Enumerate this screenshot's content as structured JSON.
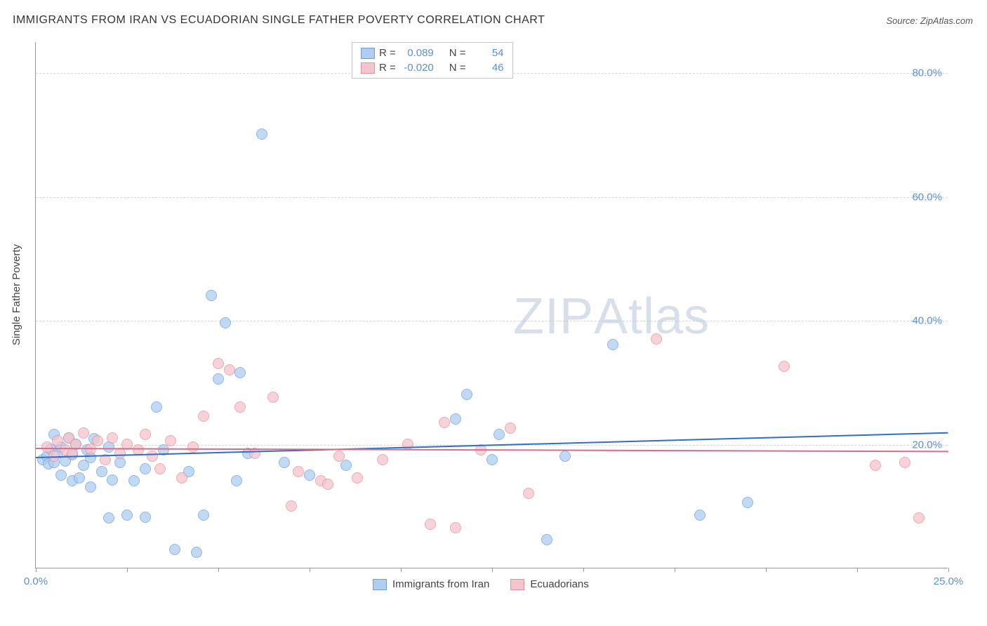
{
  "title": "IMMIGRANTS FROM IRAN VS ECUADORIAN SINGLE FATHER POVERTY CORRELATION CHART",
  "source_label": "Source: ",
  "source_value": "ZipAtlas.com",
  "watermark": {
    "part1": "ZIP",
    "part2": "Atlas"
  },
  "chart": {
    "type": "scatter",
    "y_axis_title": "Single Father Poverty",
    "xlim": [
      0,
      25
    ],
    "ylim": [
      0,
      85
    ],
    "x_ticks": [
      0,
      25
    ],
    "x_tick_labels": [
      "0.0%",
      "25.0%"
    ],
    "y_ticks": [
      20,
      40,
      60,
      80
    ],
    "y_tick_labels": [
      "20.0%",
      "40.0%",
      "60.0%",
      "80.0%"
    ],
    "minor_x_ticks": [
      0,
      2.5,
      5,
      7.5,
      10,
      12.5,
      15,
      17.5,
      20,
      22.5,
      25
    ],
    "background_color": "#ffffff",
    "grid_color": "#d5d5d5",
    "axis_color": "#999999",
    "point_radius": 8,
    "point_opacity": 0.75,
    "series": [
      {
        "name": "Immigrants from Iran",
        "fill_color": "#aecdf0",
        "stroke_color": "#6f9fd8",
        "R": "0.089",
        "N": "54",
        "trend": {
          "y_at_x0": 18.0,
          "y_at_xmax": 22.0,
          "color": "#2f6fc4",
          "width": 2
        },
        "points": [
          [
            0.2,
            17.5
          ],
          [
            0.3,
            18.0
          ],
          [
            0.35,
            16.8
          ],
          [
            0.4,
            19.2
          ],
          [
            0.5,
            17.0
          ],
          [
            0.5,
            21.5
          ],
          [
            0.6,
            18.5
          ],
          [
            0.7,
            15.0
          ],
          [
            0.7,
            19.5
          ],
          [
            0.8,
            17.2
          ],
          [
            0.9,
            21.0
          ],
          [
            1.0,
            14.0
          ],
          [
            1.0,
            18.2
          ],
          [
            1.1,
            20.0
          ],
          [
            1.2,
            14.5
          ],
          [
            1.3,
            16.5
          ],
          [
            1.4,
            19.0
          ],
          [
            1.5,
            13.0
          ],
          [
            1.5,
            17.8
          ],
          [
            1.6,
            20.8
          ],
          [
            1.8,
            15.5
          ],
          [
            2.0,
            8.0
          ],
          [
            2.0,
            19.5
          ],
          [
            2.1,
            14.2
          ],
          [
            2.3,
            17.0
          ],
          [
            2.5,
            8.5
          ],
          [
            2.7,
            14.0
          ],
          [
            3.0,
            8.2
          ],
          [
            3.0,
            16.0
          ],
          [
            3.3,
            26.0
          ],
          [
            3.5,
            19.0
          ],
          [
            3.8,
            3.0
          ],
          [
            4.2,
            15.5
          ],
          [
            4.4,
            2.5
          ],
          [
            4.6,
            8.5
          ],
          [
            4.8,
            44.0
          ],
          [
            5.0,
            30.5
          ],
          [
            5.2,
            39.5
          ],
          [
            5.5,
            14.0
          ],
          [
            5.6,
            31.5
          ],
          [
            5.8,
            18.5
          ],
          [
            6.2,
            70.0
          ],
          [
            6.8,
            17.0
          ],
          [
            7.5,
            15.0
          ],
          [
            8.5,
            16.5
          ],
          [
            11.5,
            24.0
          ],
          [
            11.8,
            28.0
          ],
          [
            12.5,
            17.5
          ],
          [
            12.7,
            21.5
          ],
          [
            14.0,
            4.5
          ],
          [
            14.5,
            18.0
          ],
          [
            15.8,
            36.0
          ],
          [
            18.2,
            8.5
          ],
          [
            19.5,
            10.5
          ]
        ]
      },
      {
        "name": "Ecuadorians",
        "fill_color": "#f5c4cd",
        "stroke_color": "#e38fa0",
        "R": "-0.020",
        "N": "46",
        "trend": {
          "y_at_x0": 19.5,
          "y_at_xmax": 19.0,
          "color": "#d86f8a",
          "width": 2
        },
        "points": [
          [
            0.3,
            19.5
          ],
          [
            0.5,
            18.0
          ],
          [
            0.6,
            20.5
          ],
          [
            0.8,
            19.0
          ],
          [
            0.9,
            21.0
          ],
          [
            1.0,
            18.5
          ],
          [
            1.1,
            20.0
          ],
          [
            1.3,
            21.8
          ],
          [
            1.5,
            19.2
          ],
          [
            1.7,
            20.5
          ],
          [
            1.9,
            17.5
          ],
          [
            2.1,
            21.0
          ],
          [
            2.3,
            18.5
          ],
          [
            2.5,
            20.0
          ],
          [
            2.8,
            19.0
          ],
          [
            3.0,
            21.5
          ],
          [
            3.2,
            18.0
          ],
          [
            3.4,
            16.0
          ],
          [
            3.7,
            20.5
          ],
          [
            4.0,
            14.5
          ],
          [
            4.3,
            19.5
          ],
          [
            4.6,
            24.5
          ],
          [
            5.0,
            33.0
          ],
          [
            5.3,
            32.0
          ],
          [
            5.6,
            26.0
          ],
          [
            6.0,
            18.5
          ],
          [
            6.5,
            27.5
          ],
          [
            7.0,
            10.0
          ],
          [
            7.2,
            15.5
          ],
          [
            7.8,
            14.0
          ],
          [
            8.0,
            13.5
          ],
          [
            8.3,
            18.0
          ],
          [
            8.8,
            14.5
          ],
          [
            9.5,
            17.5
          ],
          [
            10.2,
            20.0
          ],
          [
            10.8,
            7.0
          ],
          [
            11.2,
            23.5
          ],
          [
            11.5,
            6.5
          ],
          [
            12.2,
            19.0
          ],
          [
            13.0,
            22.5
          ],
          [
            13.5,
            12.0
          ],
          [
            17.0,
            37.0
          ],
          [
            20.5,
            32.5
          ],
          [
            23.0,
            16.5
          ],
          [
            23.8,
            17.0
          ],
          [
            24.2,
            8.0
          ]
        ]
      }
    ]
  },
  "legend_labels": {
    "R": "R =",
    "N": "N ="
  }
}
